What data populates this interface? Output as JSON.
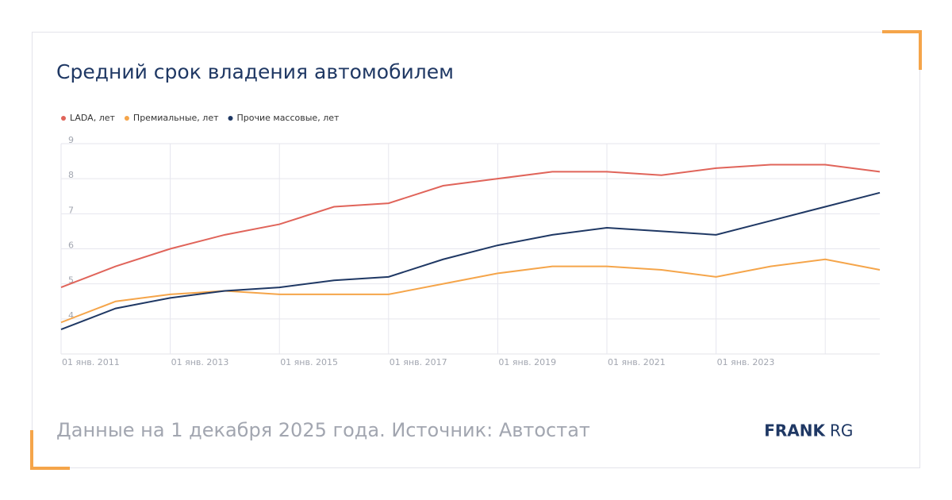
{
  "chart_data": {
    "type": "line",
    "title": "Средний срок владения автомобилем",
    "categories": [
      "01 янв. 2011",
      null,
      "01 янв. 2013",
      null,
      "01 янв. 2015",
      null,
      "01 янв. 2017",
      null,
      "01 янв. 2019",
      null,
      "01 янв. 2021",
      null,
      "01 янв. 2023",
      null,
      null,
      null
    ],
    "series": [
      {
        "name": "LADA, лет",
        "color": "#e0645a",
        "values": [
          4.9,
          5.5,
          6.0,
          6.4,
          6.7,
          7.2,
          7.3,
          7.8,
          8.0,
          8.2,
          8.2,
          8.1,
          8.3,
          8.4,
          8.4,
          8.2
        ]
      },
      {
        "name": "Премиальные, лет",
        "color": "#f5a54a",
        "values": [
          3.9,
          4.5,
          4.7,
          4.8,
          4.7,
          4.7,
          4.7,
          5.0,
          5.3,
          5.5,
          5.5,
          5.4,
          5.2,
          5.5,
          5.7,
          5.4
        ]
      },
      {
        "name": "Прочие массовые, лет",
        "color": "#1f3864",
        "values": [
          3.7,
          4.3,
          4.6,
          4.8,
          4.9,
          5.1,
          5.2,
          5.7,
          6.1,
          6.4,
          6.6,
          6.5,
          6.4,
          6.8,
          7.2,
          7.6
        ]
      }
    ],
    "ylim": [
      3,
      9
    ],
    "yticks": [
      4,
      5,
      6,
      7,
      8,
      9
    ],
    "grid": true,
    "legend": "top-left"
  },
  "footer": {
    "source": "Данные на 1 декабря 2025 года. Источник: Автостат",
    "logo_bold": "FRANK",
    "logo_light": "RG"
  }
}
